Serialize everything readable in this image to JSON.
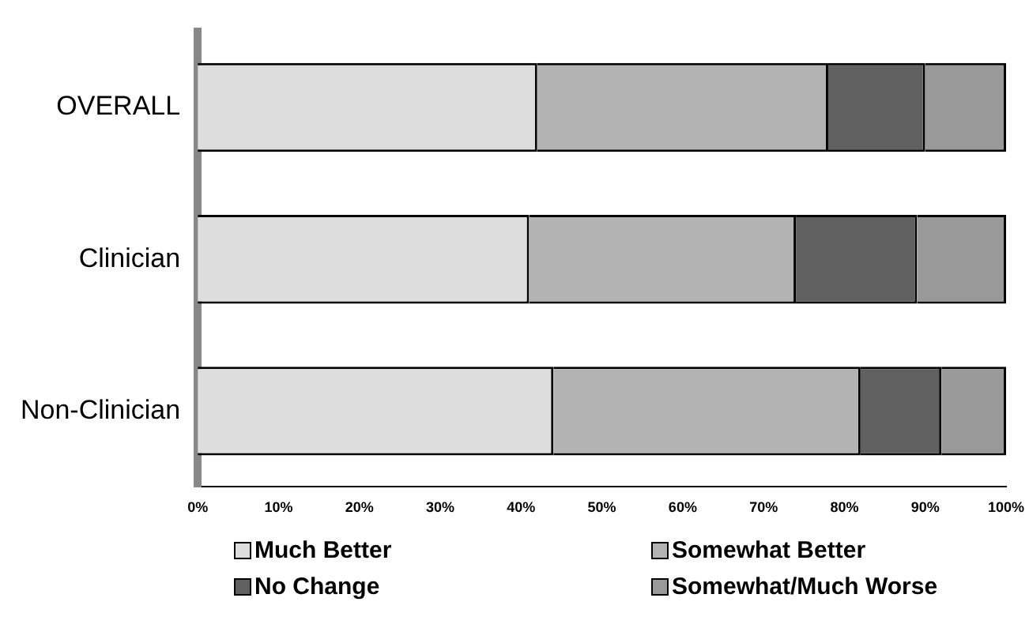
{
  "chart_data": {
    "type": "bar",
    "orientation": "horizontal",
    "stacked": true,
    "categories": [
      "OVERALL",
      "Clinician",
      "Non-Clinician"
    ],
    "series": [
      {
        "name": "Much Better",
        "color": "#dddddd",
        "values": [
          42,
          41,
          44
        ]
      },
      {
        "name": "Somewhat Better",
        "color": "#b3b3b3",
        "values": [
          36,
          33,
          38
        ]
      },
      {
        "name": "No Change",
        "color": "#606060",
        "values": [
          12,
          15,
          10
        ]
      },
      {
        "name": "Somewhat/Much Worse",
        "color": "#999999",
        "values": [
          10,
          11,
          8
        ]
      }
    ],
    "xlim": [
      0,
      100
    ],
    "xticks": [
      {
        "value": 0,
        "label": "0%"
      },
      {
        "value": 10,
        "label": "10%"
      },
      {
        "value": 20,
        "label": "20%"
      },
      {
        "value": 30,
        "label": "30%"
      },
      {
        "value": 40,
        "label": "40%"
      },
      {
        "value": 50,
        "label": "50%"
      },
      {
        "value": 60,
        "label": "60%"
      },
      {
        "value": 70,
        "label": "70%"
      },
      {
        "value": 80,
        "label": "80%"
      },
      {
        "value": 90,
        "label": "90%"
      },
      {
        "value": 100,
        "label": "100%"
      }
    ],
    "legend": "bottom",
    "grid": false
  }
}
